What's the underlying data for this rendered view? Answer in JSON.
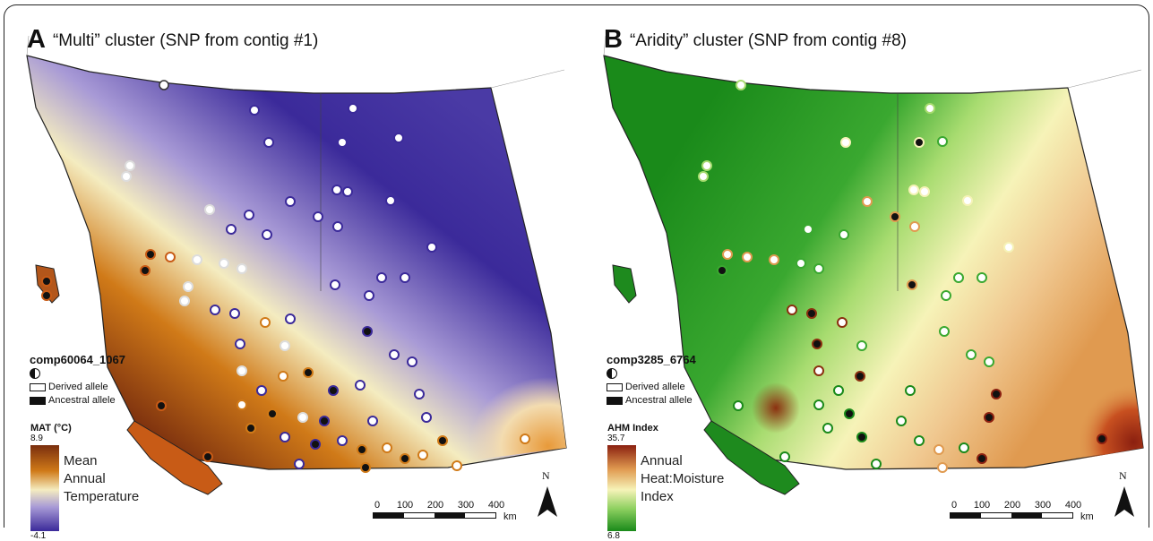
{
  "panels": [
    {
      "letter": "A",
      "title": "“Multi” cluster (SNP from contig #1)",
      "snp": "comp60064_1067",
      "legend": {
        "derived": "Derived allele",
        "ancestral": "Ancestral allele"
      },
      "scale": {
        "title": "MAT (°C)",
        "max": "8.9",
        "min": "-4.1",
        "desc": [
          "Mean",
          "Annual",
          "Temperature"
        ]
      },
      "colors": {
        "high": "#7a2e0e",
        "mid_high": "#d07a18",
        "mid": "#f4ecc0",
        "mid_low": "#a89ad6",
        "low": "#3b2a9a"
      }
    },
    {
      "letter": "B",
      "title": "“Aridity” cluster (SNP from contig #8)",
      "snp": "comp3285_6764",
      "legend": {
        "derived": "Derived allele",
        "ancestral": "Ancestral allele"
      },
      "scale": {
        "title": "AHM Index",
        "max": "35.7",
        "min": "6.8",
        "desc": [
          "Annual",
          "Heat:Moisture",
          "Index"
        ]
      },
      "colors": {
        "high": "#8b2010",
        "mid_high": "#e09a50",
        "mid": "#f6f3b8",
        "mid_low": "#8ed060",
        "low": "#1a8a1a"
      }
    }
  ],
  "scalebar": {
    "ticks": [
      "0",
      "100",
      "200",
      "300",
      "400"
    ],
    "unit": "km"
  },
  "north": "N"
}
